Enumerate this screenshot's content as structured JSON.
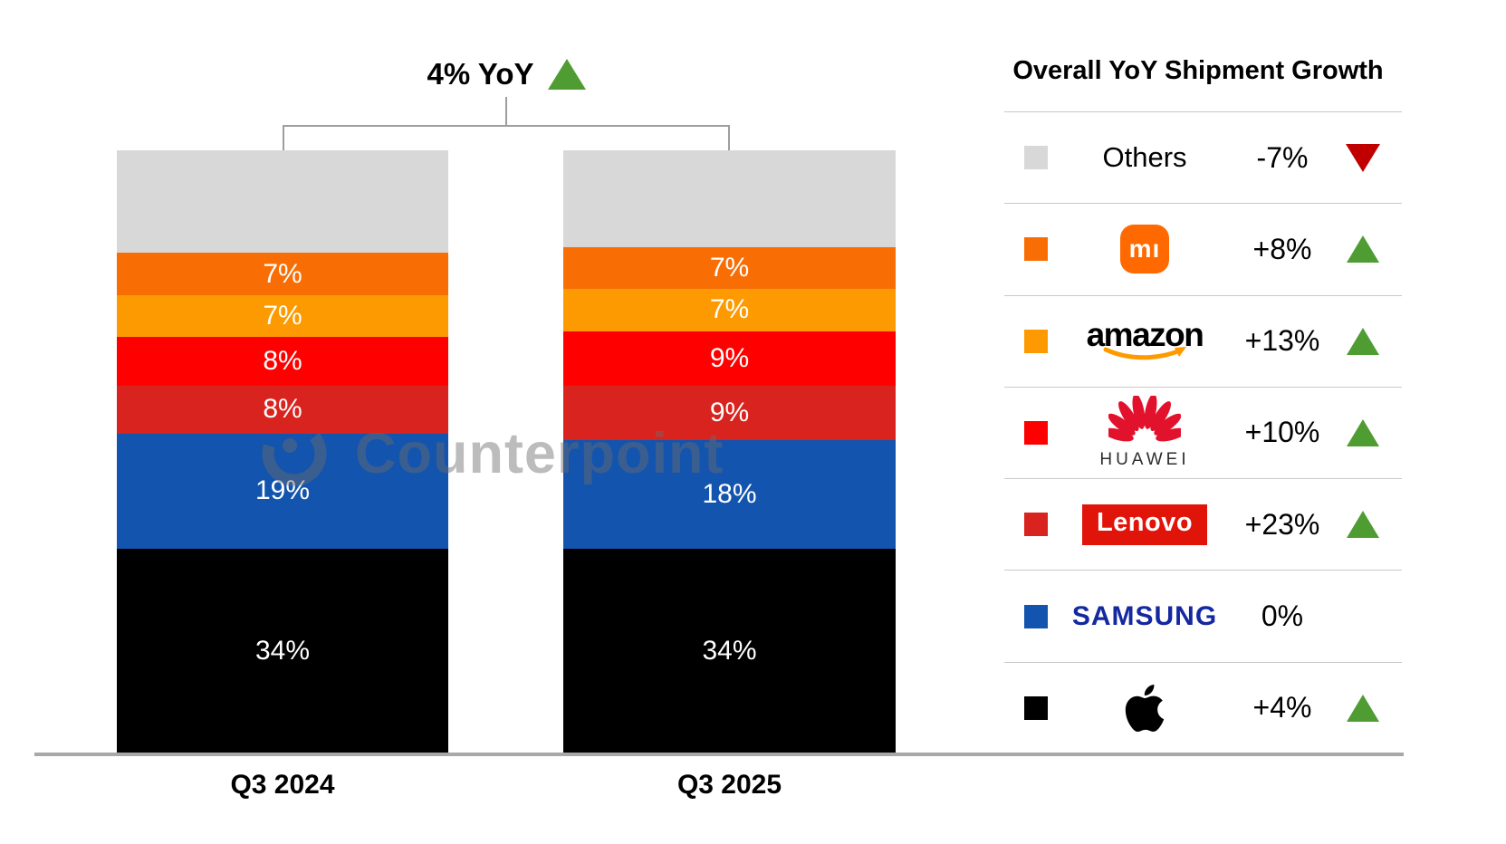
{
  "title": {
    "text": "4% YoY",
    "direction": "up"
  },
  "watermark": {
    "text": "Counterpoint"
  },
  "axis": {
    "categories": [
      "Q3 2024",
      "Q3 2025"
    ]
  },
  "chart_data": {
    "type": "bar",
    "subtype": "100%-stacked-column",
    "title": "4% YoY",
    "categories": [
      "Q3 2024",
      "Q3 2025"
    ],
    "unit": "%",
    "stack_order": "bottom-to-top",
    "series": [
      {
        "name": "Apple",
        "color": "#000000",
        "values": [
          34,
          34
        ]
      },
      {
        "name": "Samsung",
        "color": "#1354ae",
        "values": [
          19,
          18
        ]
      },
      {
        "name": "Lenovo",
        "color": "#d9231e",
        "values": [
          8,
          9
        ]
      },
      {
        "name": "Huawei",
        "color": "#fe0000",
        "values": [
          8,
          9
        ]
      },
      {
        "name": "Amazon",
        "color": "#fd9a02",
        "values": [
          7,
          7
        ]
      },
      {
        "name": "Xiaomi",
        "color": "#f86e05",
        "values": [
          7,
          7
        ]
      },
      {
        "name": "Others",
        "color": "#d8d8d8",
        "values": [
          17,
          16
        ],
        "show_label": false
      }
    ],
    "legend_position": "right",
    "grid": false,
    "ylim": [
      0,
      100
    ]
  },
  "legend": {
    "title": "Overall YoY Shipment Growth",
    "rows": [
      {
        "brand": "Others",
        "growth": "-7%",
        "direction": "down",
        "swatch": "#d8d8d8",
        "logo_text": "Others"
      },
      {
        "brand": "Xiaomi",
        "growth": "+8%",
        "direction": "up",
        "swatch": "#f86e05",
        "logo_text": "mı"
      },
      {
        "brand": "Amazon",
        "growth": "+13%",
        "direction": "up",
        "swatch": "#fd9a02",
        "logo_text": "amazon"
      },
      {
        "brand": "Huawei",
        "growth": "+10%",
        "direction": "up",
        "swatch": "#fe0000",
        "logo_text": "HUAWEI"
      },
      {
        "brand": "Lenovo",
        "growth": "+23%",
        "direction": "up",
        "swatch": "#d9231e",
        "logo_text": "Lenovo"
      },
      {
        "brand": "Samsung",
        "growth": "0%",
        "direction": "none",
        "swatch": "#1354ae",
        "logo_text": "SAMSUNG"
      },
      {
        "brand": "Apple",
        "growth": "+4%",
        "direction": "up",
        "swatch": "#000000",
        "logo_text": ""
      }
    ]
  },
  "colors": {
    "growth_up": "#4f9d32",
    "growth_down": "#c00000",
    "baseline": "#a8a8a8",
    "divider": "#c9c9c9",
    "xiaomi_badge": "#ff6900",
    "amazon_smile": "#ff9900",
    "huawei_petals": "#e2122d",
    "lenovo_box": "#e1140a",
    "samsung_wordmark": "#1428a0"
  }
}
